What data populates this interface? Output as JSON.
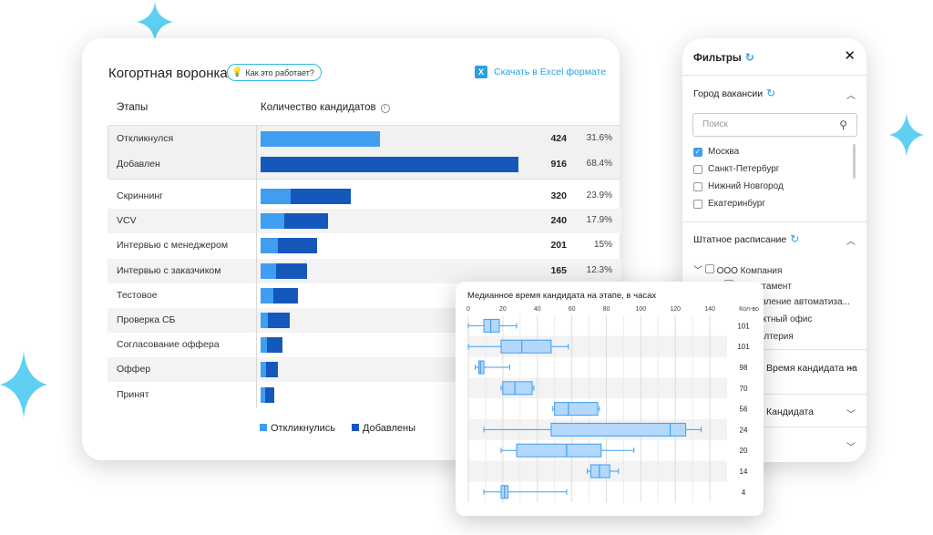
{
  "funnel": {
    "title": "Когортная воронка",
    "help_label": "Как это работает?",
    "excel_label": "Скачать в Excel формате",
    "col_stages": "Этапы",
    "col_count": "Количество кандидатов",
    "top_rows": [
      {
        "label": "Откликнулся",
        "count": "424",
        "pct": "31.6%",
        "responded": 424,
        "added": 0
      },
      {
        "label": "Добавлен",
        "count": "916",
        "pct": "68.4%",
        "responded": 0,
        "added": 916
      }
    ],
    "rows": [
      {
        "label": "Скриннинг",
        "count": "320",
        "pct": "23.9%",
        "responded": 108,
        "added": 212
      },
      {
        "label": "VCV",
        "count": "240",
        "pct": "17.9%",
        "responded": 84,
        "added": 156
      },
      {
        "label": "Интервью с менеджером",
        "count": "201",
        "pct": "15%",
        "responded": 63,
        "added": 138
      },
      {
        "label": "Интервью с заказчиком",
        "count": "165",
        "pct": "12.3%",
        "responded": 55,
        "added": 110
      },
      {
        "label": "Тестовое",
        "count": "",
        "pct": "",
        "responded": 45,
        "added": 88
      },
      {
        "label": "Проверка СБ",
        "count": "",
        "pct": "",
        "responded": 25,
        "added": 79
      },
      {
        "label": "Согласование оффера",
        "count": "",
        "pct": "",
        "responded": 22,
        "added": 55
      },
      {
        "label": "Оффер",
        "count": "",
        "pct": "",
        "responded": 20,
        "added": 40
      },
      {
        "label": "Принят",
        "count": "",
        "pct": "",
        "responded": 15,
        "added": 32
      }
    ],
    "legend": {
      "responded": "Откликнулись",
      "added": "Добавлены"
    },
    "colors": {
      "responded": "#3f9ef0",
      "added": "#1558bc"
    }
  },
  "filters": {
    "title": "Фильтры",
    "city": {
      "header": "Город вакансии",
      "search_placeholder": "Поиск",
      "options": [
        {
          "label": "Москва",
          "checked": true
        },
        {
          "label": "Санкт-Петербург",
          "checked": false
        },
        {
          "label": "Нижний Новгород",
          "checked": false
        },
        {
          "label": "Екатеринбург",
          "checked": false
        }
      ]
    },
    "staff": {
      "header": "Штатное расписание",
      "tree": [
        "ООО Компания",
        "Департамент",
        "Управление автоматиза...",
        "Проектный офис",
        "Бухгалтерия"
      ]
    },
    "sections": [
      "Время кандидата на",
      "Кандидата",
      ""
    ]
  },
  "chart_data": {
    "type": "boxplot",
    "title": "Медианное время кандидата на этапе, в часах",
    "xlim": [
      0,
      150
    ],
    "xticks": [
      0,
      20,
      40,
      60,
      80,
      100,
      120,
      140
    ],
    "count_label": "Кол-во",
    "series": [
      {
        "min": 0,
        "q1": 9,
        "median": 13,
        "q3": 18,
        "max": 28,
        "count": "101"
      },
      {
        "min": 0,
        "q1": 19,
        "median": 31,
        "q3": 48,
        "max": 58,
        "count": "101"
      },
      {
        "min": 4,
        "q1": 6,
        "median": 7,
        "q3": 9,
        "max": 24,
        "count": "98"
      },
      {
        "min": 19,
        "q1": 20,
        "median": 27,
        "q3": 37,
        "max": 38,
        "count": "70"
      },
      {
        "min": 49,
        "q1": 50,
        "median": 58,
        "q3": 75,
        "max": 76,
        "count": "56"
      },
      {
        "min": 9,
        "q1": 48,
        "median": 117,
        "q3": 126,
        "max": 135,
        "count": "24"
      },
      {
        "min": 19,
        "q1": 28,
        "median": 57,
        "q3": 77,
        "max": 96,
        "count": "20"
      },
      {
        "min": 69,
        "q1": 71,
        "median": 76,
        "q3": 82,
        "max": 87,
        "count": "14"
      },
      {
        "min": 9,
        "q1": 19,
        "median": 21,
        "q3": 23,
        "max": 57,
        "count": "4"
      }
    ]
  }
}
